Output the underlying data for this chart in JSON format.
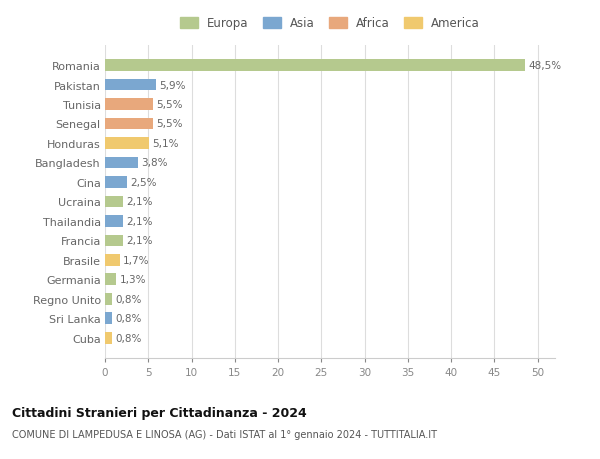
{
  "countries": [
    "Romania",
    "Pakistan",
    "Tunisia",
    "Senegal",
    "Honduras",
    "Bangladesh",
    "Cina",
    "Ucraina",
    "Thailandia",
    "Francia",
    "Brasile",
    "Germania",
    "Regno Unito",
    "Sri Lanka",
    "Cuba"
  ],
  "values": [
    48.5,
    5.9,
    5.5,
    5.5,
    5.1,
    3.8,
    2.5,
    2.1,
    2.1,
    2.1,
    1.7,
    1.3,
    0.8,
    0.8,
    0.8
  ],
  "labels": [
    "48,5%",
    "5,9%",
    "5,5%",
    "5,5%",
    "5,1%",
    "3,8%",
    "2,5%",
    "2,1%",
    "2,1%",
    "2,1%",
    "1,7%",
    "1,3%",
    "0,8%",
    "0,8%",
    "0,8%"
  ],
  "continents": [
    "Europa",
    "Asia",
    "Africa",
    "Africa",
    "America",
    "Asia",
    "Asia",
    "Europa",
    "Asia",
    "Europa",
    "America",
    "Europa",
    "Europa",
    "Asia",
    "America"
  ],
  "colors": {
    "Europa": "#b5c98e",
    "Asia": "#7ba7d0",
    "Africa": "#e8a87c",
    "America": "#f0c96e"
  },
  "legend_order": [
    "Europa",
    "Asia",
    "Africa",
    "America"
  ],
  "title": "Cittadini Stranieri per Cittadinanza - 2024",
  "subtitle": "COMUNE DI LAMPEDUSA E LINOSA (AG) - Dati ISTAT al 1° gennaio 2024 - TUTTITALIA.IT",
  "xlim": [
    0,
    52
  ],
  "xticks": [
    0,
    5,
    10,
    15,
    20,
    25,
    30,
    35,
    40,
    45,
    50
  ],
  "background_color": "#ffffff",
  "grid_color": "#dddddd",
  "bar_height": 0.6
}
